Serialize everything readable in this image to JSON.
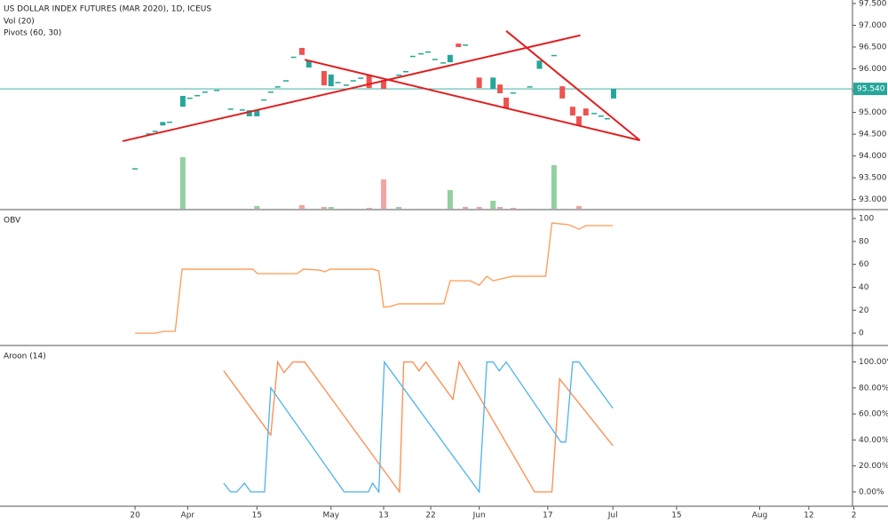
{
  "chart_data": [
    {
      "type": "candlestick",
      "title": "US DOLLAR INDEX FUTURES (MAR 2020), 1D, ICEUS",
      "subtitles": [
        "Vol (20)",
        "Pivots (60, 30)"
      ],
      "xlim": [
        0,
        123.1
      ],
      "ylim": [
        92.79,
        97.58
      ],
      "yticks": [
        {
          "value": 93,
          "label": "93.000"
        },
        {
          "value": 93.5,
          "label": "93.500"
        },
        {
          "value": 94,
          "label": "94.000"
        },
        {
          "value": 94.5,
          "label": "94.500"
        },
        {
          "value": 95,
          "label": "95.000"
        },
        {
          "value": 95.5,
          "label": "95.500"
        },
        {
          "value": 96,
          "label": "96.000"
        },
        {
          "value": 96.5,
          "label": "96.500"
        },
        {
          "value": 97,
          "label": "97.000"
        },
        {
          "value": 97.5,
          "label": "97.500"
        }
      ],
      "up_color": "#26a69a",
      "down_color": "#ef5350",
      "x": [
        19.5,
        21.5,
        22.4,
        23.5,
        24.5,
        26.4,
        27.4,
        28.5,
        29.6,
        31.3,
        33.3,
        35.0,
        36.0,
        37.1,
        38.1,
        39.1,
        40.1,
        41.3,
        42.4,
        43.6,
        44.6,
        46.8,
        47.8,
        48.8,
        50.0,
        51.0,
        52.1,
        53.3,
        55.4,
        56.5,
        57.6,
        58.6,
        59.6,
        60.8,
        61.8,
        62.8,
        64.0,
        65.0,
        66.2,
        67.2,
        69.2,
        71.2,
        72.2,
        73.1,
        74.1,
        76.5,
        77.9,
        80.0,
        81.2,
        82.7,
        83.6,
        84.6,
        85.8,
        86.8,
        87.7,
        88.6
      ],
      "open": [
        93.72,
        94.52,
        94.58,
        94.7,
        94.79,
        95.13,
        95.34,
        95.4,
        95.48,
        95.52,
        95.09,
        95.07,
        94.91,
        94.91,
        95.3,
        95.48,
        95.6,
        95.74,
        96.28,
        96.48,
        96.03,
        95.95,
        95.6,
        95.7,
        95.64,
        95.74,
        95.8,
        95.87,
        95.74,
        95.78,
        95.87,
        95.95,
        96.3,
        96.36,
        96.4,
        96.23,
        96.15,
        96.15,
        96.58,
        96.56,
        95.8,
        95.54,
        95.64,
        95.34,
        95.46,
        95.6,
        96.0,
        96.32,
        95.6,
        95.13,
        94.91,
        95.09,
        94.99,
        94.93,
        94.87,
        95.32
      ],
      "close": [
        93.72,
        94.52,
        94.58,
        94.78,
        94.79,
        95.38,
        95.34,
        95.4,
        95.48,
        95.52,
        95.09,
        95.07,
        95.05,
        95.05,
        95.3,
        95.48,
        95.6,
        95.74,
        96.28,
        96.32,
        96.19,
        95.62,
        95.87,
        95.7,
        95.64,
        95.74,
        95.8,
        95.56,
        95.54,
        95.78,
        95.87,
        95.95,
        96.3,
        96.36,
        96.4,
        96.23,
        96.15,
        96.32,
        96.5,
        96.56,
        95.56,
        95.8,
        95.44,
        95.09,
        95.46,
        95.6,
        96.19,
        96.32,
        95.32,
        94.93,
        94.7,
        94.93,
        94.99,
        94.93,
        94.87,
        95.54
      ],
      "volume": {
        "x": [
          26.4,
          37.1,
          43.6,
          46.8,
          47.8,
          53.3,
          55.4,
          57.6,
          65.0,
          67.2,
          69.2,
          71.2,
          72.2,
          74.1,
          80.0,
          83.6
        ],
        "values": [
          58,
          3,
          4,
          2,
          2,
          1,
          33,
          2,
          21,
          2,
          2,
          9,
          2,
          1,
          49,
          3
        ],
        "colors": [
          "#93d0a0",
          "#93d0a0",
          "#f4a3a3",
          "#f4a3a3",
          "#93d0a0",
          "#f4a3a3",
          "#f4a3a3",
          "#93d0a0",
          "#93d0a0",
          "#f4a3a3",
          "#f4a3a3",
          "#93d0a0",
          "#f4a3a3",
          "#f4a3a3",
          "#93d0a0",
          "#f4a3a3"
        ]
      },
      "trend_lines": {
        "color": "#e02020",
        "lines": [
          {
            "x": [
              17.7,
              83.8
            ],
            "y": [
              94.34,
              96.77
            ]
          },
          {
            "x": [
              44.0,
              92.4
            ],
            "y": [
              96.21,
              94.36
            ]
          },
          {
            "x": [
              73.1,
              92.4
            ],
            "y": [
              96.87,
              94.36
            ]
          }
        ]
      },
      "last_price": {
        "value": 95.54,
        "label": "95.540",
        "color": "#26a69a"
      }
    },
    {
      "type": "line",
      "title": "OBV",
      "xlim": [
        0,
        123.1
      ],
      "ylim": [
        -10,
        107
      ],
      "yticks": [
        0,
        20,
        40,
        60,
        80,
        100
      ],
      "series": [
        {
          "color": "#ff9a52",
          "x": [
            19.5,
            22.4,
            23.7,
            25.3,
            26.3,
            36.5,
            37.2,
            42.9,
            43.8,
            46.2,
            46.9,
            47.7,
            53.8,
            54.7,
            55.4,
            56.4,
            57.6,
            64.1,
            65.0,
            67.9,
            69.2,
            70.3,
            71.2,
            72.4,
            74.0,
            78.8,
            79.7,
            82.1,
            83.6,
            84.6,
            88.5
          ],
          "values": [
            0,
            0,
            1.6,
            1.6,
            55.8,
            55.8,
            51.9,
            51.9,
            55.8,
            55.0,
            53.5,
            55.8,
            55.8,
            54.3,
            22.5,
            23.3,
            25.6,
            25.6,
            45.7,
            45.7,
            41.9,
            49.6,
            45.7,
            47.3,
            49.6,
            49.6,
            96.1,
            94.6,
            90.7,
            93.8,
            93.8
          ]
        }
      ]
    },
    {
      "type": "line",
      "title": "Aroon (14)",
      "xlim": [
        0,
        123.1
      ],
      "ylim": [
        -11,
        112
      ],
      "yticks": [
        {
          "value": 0,
          "label": "0.00%"
        },
        {
          "value": 20,
          "label": "20.00%"
        },
        {
          "value": 40,
          "label": "40.00%"
        },
        {
          "value": 60,
          "label": "60.00%"
        },
        {
          "value": 80,
          "label": "80.00%"
        },
        {
          "value": 100,
          "label": "100.00%"
        }
      ],
      "xticks": [
        {
          "value": 19.5,
          "label": "20"
        },
        {
          "value": 27.1,
          "label": "Apr"
        },
        {
          "value": 37.1,
          "label": "15"
        },
        {
          "value": 47.8,
          "label": "May"
        },
        {
          "value": 55.4,
          "label": "13"
        },
        {
          "value": 62.2,
          "label": "22"
        },
        {
          "value": 69.2,
          "label": "Jun"
        },
        {
          "value": 79.1,
          "label": "17"
        },
        {
          "value": 88.5,
          "label": "Jul"
        },
        {
          "value": 97.7,
          "label": "15"
        },
        {
          "value": 109.7,
          "label": "Aug"
        },
        {
          "value": 116.8,
          "label": "12"
        },
        {
          "value": 123.3,
          "label": "2"
        }
      ],
      "series": [
        {
          "color": "#ff8a4c",
          "x": [
            32.3,
            39.1,
            40.1,
            41.0,
            42.3,
            44.0,
            57.7,
            58.3,
            59.6,
            60.5,
            61.5,
            65.4,
            66.3,
            77.2,
            79.7,
            80.8,
            88.5
          ],
          "values": [
            93.2,
            43.8,
            100,
            91.8,
            100,
            100,
            0,
            100,
            100,
            93.2,
            100,
            71.2,
            100,
            0,
            0,
            87.0,
            35.6
          ]
        },
        {
          "color": "#4db3ea",
          "x": [
            32.3,
            33.3,
            34.2,
            35.3,
            36.2,
            38.2,
            39.1,
            49.7,
            53.2,
            53.8,
            54.7,
            55.5,
            69.2,
            70.3,
            71.2,
            72.1,
            73.1,
            81.0,
            81.7,
            82.7,
            83.6,
            88.5
          ],
          "values": [
            6.8,
            0,
            0,
            6.8,
            0,
            0,
            80.1,
            0,
            0,
            6.8,
            0,
            100,
            0,
            100,
            100,
            93.2,
            100,
            38.4,
            38.4,
            100,
            100,
            64.4
          ]
        }
      ]
    }
  ]
}
